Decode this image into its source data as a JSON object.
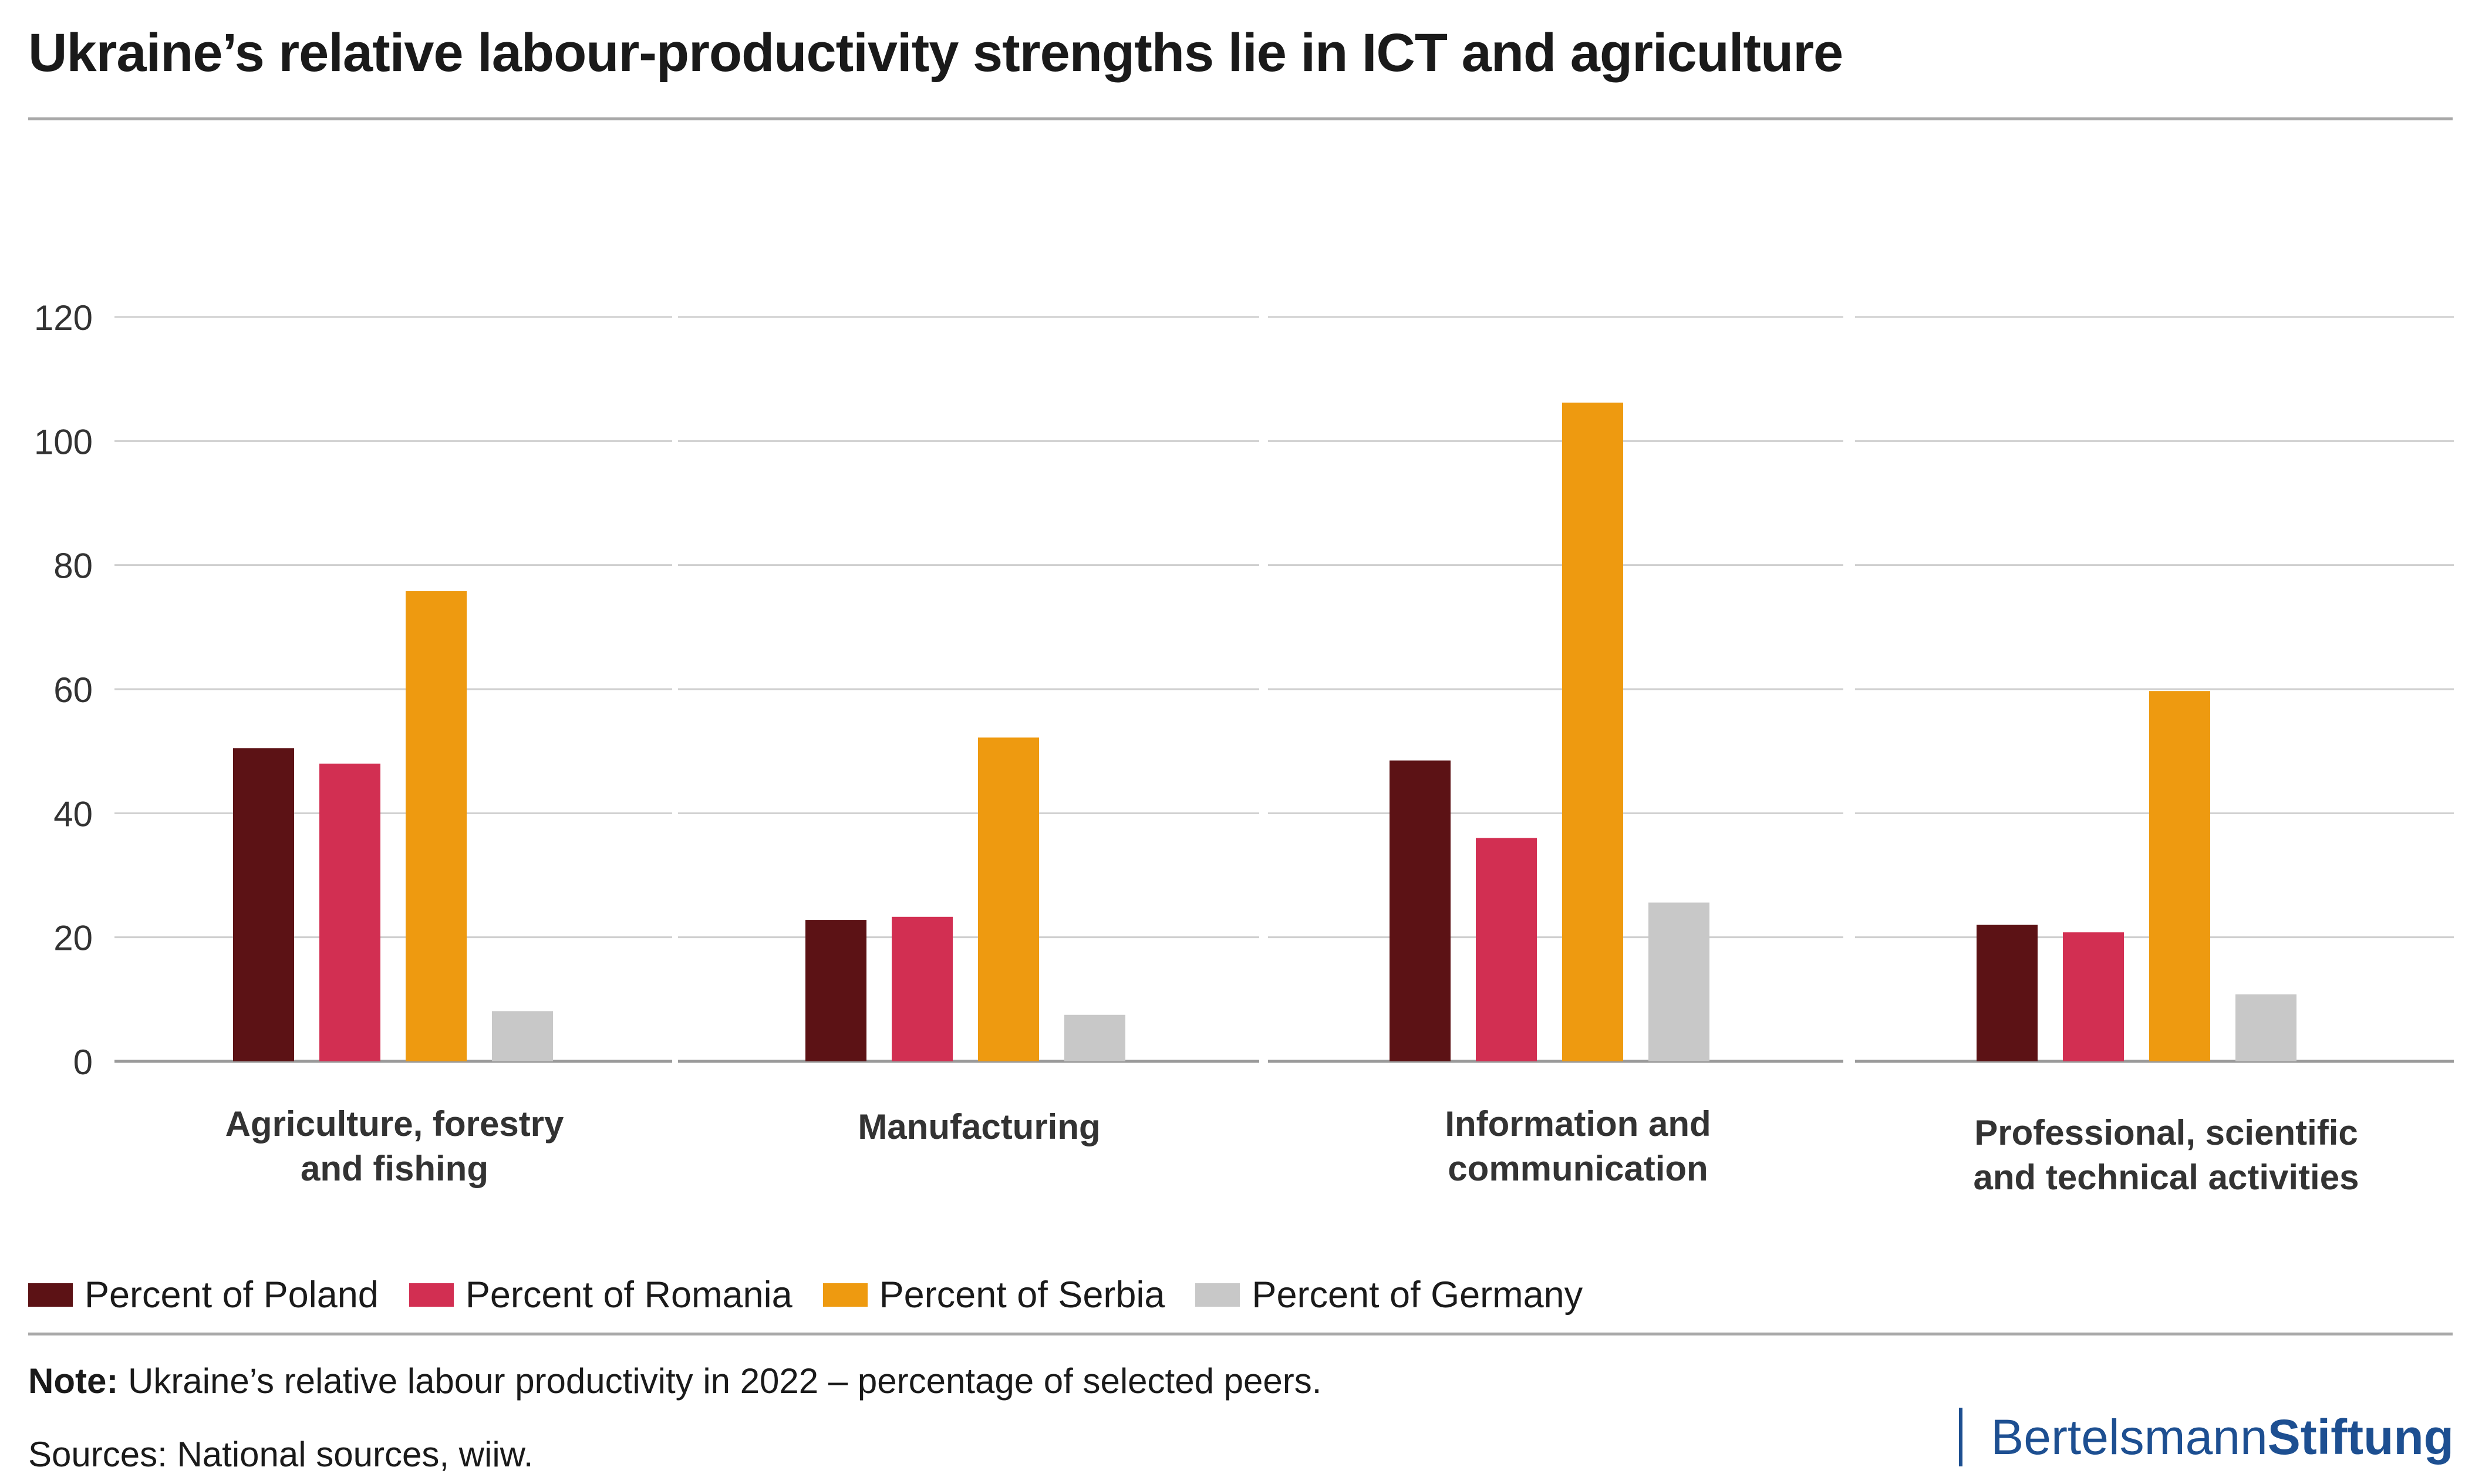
{
  "title": "Ukraine’s relative labour-productivity strengths lie in ICT and agriculture",
  "chart_data": {
    "type": "bar",
    "title": "Ukraine’s relative labour-productivity strengths lie in ICT and agriculture",
    "xlabel": "",
    "ylabel": "",
    "ylim": [
      0,
      120
    ],
    "yticks": [
      "0",
      "20",
      "40",
      "60",
      "80",
      "100",
      "120"
    ],
    "grid": true,
    "legend_position": "bottom-left",
    "categories": [
      [
        "Agriculture, forestry",
        "and fishing"
      ],
      [
        "Manufacturing"
      ],
      [
        "Information and",
        "communication"
      ],
      [
        "Professional, scientific",
        "and technical activities"
      ]
    ],
    "series": [
      {
        "name": "Percent of Poland",
        "color": "#5c1215",
        "values": [
          50.5,
          22.8,
          48.5,
          22.0
        ]
      },
      {
        "name": "Percent of Romania",
        "color": "#d22f52",
        "values": [
          48.0,
          23.3,
          36.0,
          20.8
        ]
      },
      {
        "name": "Percent of Serbia",
        "color": "#ee9a10",
        "values": [
          75.8,
          52.2,
          106.2,
          59.7
        ]
      },
      {
        "name": "Percent of Germany",
        "color": "#c8c8c8",
        "values": [
          8.1,
          7.5,
          25.6,
          10.8
        ]
      }
    ]
  },
  "legend": [
    {
      "label": "Percent of Poland",
      "color": "#5c1215"
    },
    {
      "label": "Percent of Romania",
      "color": "#d22f52"
    },
    {
      "label": "Percent of Serbia",
      "color": "#ee9a10"
    },
    {
      "label": "Percent of Germany",
      "color": "#c8c8c8"
    }
  ],
  "note": {
    "label": "Note:",
    "text": " Ukraine’s relative labour productivity in 2022 – percentage of selected peers."
  },
  "sources": "Sources: National sources, wiiw.",
  "brand": {
    "part1": "Bertelsmann",
    "part2": "Stiftung",
    "color": "#1d4f91"
  }
}
